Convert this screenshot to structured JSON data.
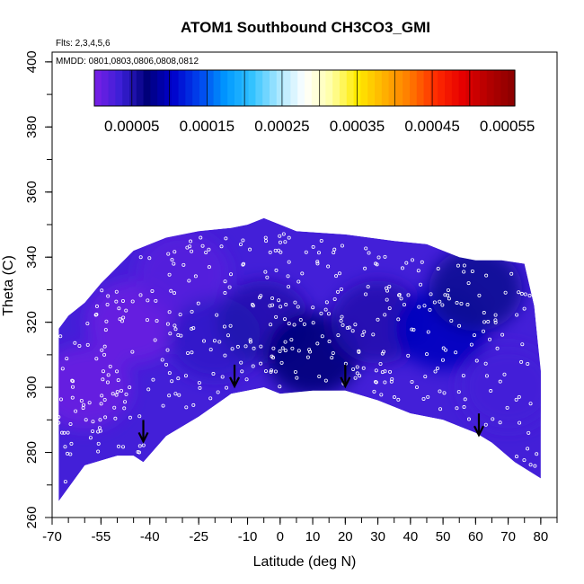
{
  "chart_data": {
    "type": "heatmap",
    "title": "ATOM1 Southbound CH3CO3_GMI",
    "flights_note": "Flts: 2,3,4,5,6",
    "dates_note": "MMDD: 0801,0803,0806,0808,0812",
    "xlabel": "Latitude (deg N)",
    "ylabel": "Theta (C)",
    "xlim": [
      -70,
      85
    ],
    "ylim": [
      260,
      403
    ],
    "x_tick_labels": [
      "-70",
      "-55",
      "-40",
      "-25",
      "-10",
      "0",
      "10",
      "20",
      "30",
      "40",
      "50",
      "60",
      "70",
      "80"
    ],
    "y_tick_labels": [
      "260",
      "280",
      "300",
      "320",
      "340",
      "360",
      "380",
      "400"
    ],
    "colorbar": {
      "tick_labels": [
        "0.00005",
        "0.00015",
        "0.00025",
        "0.00035",
        "0.00045",
        "0.00055"
      ],
      "tick_values": [
        5e-05,
        0.00015,
        0.00025,
        0.00035,
        0.00045,
        0.00055
      ],
      "range": [
        0.0,
        0.00056
      ],
      "colors": [
        "#7a1fe6",
        "#3a1fd6",
        "#00007a",
        "#0000cc",
        "#0044ee",
        "#0099ff",
        "#33c2ff",
        "#a6e6ff",
        "#ffffff",
        "#ffffa6",
        "#ffeb00",
        "#ffb300",
        "#ff7a00",
        "#ff2a00",
        "#e60000",
        "#b30000",
        "#8a0000"
      ],
      "legend_placement": "top inset"
    },
    "field": {
      "description_scale": "values approx. between 0.00001 and 0.00012",
      "top_boundary": [
        [
          -68,
          318
        ],
        [
          -65,
          322
        ],
        [
          -60,
          326
        ],
        [
          -55,
          332
        ],
        [
          -50,
          337
        ],
        [
          -45,
          342
        ],
        [
          -35,
          346
        ],
        [
          -25,
          348
        ],
        [
          -15,
          349
        ],
        [
          -10,
          350
        ],
        [
          -5,
          352
        ],
        [
          5,
          348
        ],
        [
          20,
          347
        ],
        [
          35,
          345
        ],
        [
          45,
          344
        ],
        [
          55,
          340
        ],
        [
          60,
          339
        ],
        [
          68,
          339
        ],
        [
          75,
          338
        ],
        [
          78,
          325
        ],
        [
          80,
          305
        ]
      ],
      "bottom_boundary": [
        [
          -68,
          265
        ],
        [
          -60,
          276
        ],
        [
          -50,
          279
        ],
        [
          -45,
          279
        ],
        [
          -42,
          277
        ],
        [
          -35,
          285
        ],
        [
          -25,
          291
        ],
        [
          -15,
          298
        ],
        [
          -10,
          299
        ],
        [
          -5,
          300
        ],
        [
          0,
          298
        ],
        [
          10,
          299
        ],
        [
          20,
          299
        ],
        [
          30,
          296
        ],
        [
          40,
          292
        ],
        [
          50,
          290
        ],
        [
          60,
          286
        ],
        [
          65,
          283
        ],
        [
          72,
          277
        ],
        [
          80,
          272
        ]
      ],
      "regions": [
        {
          "lat": -60,
          "theta": 300,
          "value": 1e-05
        },
        {
          "lat": -45,
          "theta": 320,
          "value": 1e-05
        },
        {
          "lat": -30,
          "theta": 335,
          "value": 2e-05
        },
        {
          "lat": -20,
          "theta": 315,
          "value": 4e-05
        },
        {
          "lat": -5,
          "theta": 320,
          "value": 5e-05
        },
        {
          "lat": 10,
          "theta": 310,
          "value": 7e-05
        },
        {
          "lat": 30,
          "theta": 320,
          "value": 5e-05
        },
        {
          "lat": 50,
          "theta": 318,
          "value": 0.0001
        },
        {
          "lat": 60,
          "theta": 330,
          "value": 6e-05
        },
        {
          "lat": 70,
          "theta": 300,
          "value": 3e-05
        }
      ]
    },
    "arrows": [
      {
        "lat": -42,
        "theta": 285
      },
      {
        "lat": -14,
        "theta": 302
      },
      {
        "lat": 20,
        "theta": 302
      },
      {
        "lat": 61,
        "theta": 287
      }
    ]
  }
}
